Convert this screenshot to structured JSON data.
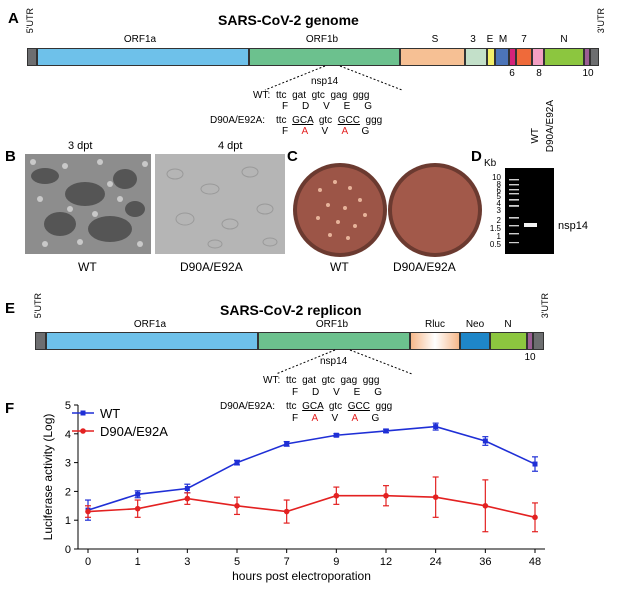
{
  "panelA": {
    "label": "A",
    "title": "SARS-CoV-2 genome",
    "utr5": "5'UTR",
    "utr3": "3'UTR",
    "segments": {
      "orf1a": "ORF1a",
      "orf1b": "ORF1b",
      "s": "S",
      "g3": "3",
      "e": "E",
      "m": "M",
      "g7": "7",
      "n": "N"
    },
    "below": {
      "g6": "6",
      "g8": "8",
      "g10": "10"
    },
    "nsp14": "nsp14",
    "wt_label": "WT:",
    "wt_seq": "ttc  gat  gtc  gag  ggg",
    "wt_aa": "F     D     V     E     G",
    "mut_label": "D90A/E92A:",
    "mut_prefix": "ttc",
    "mut_c1": "GCA",
    "mut_mid": "gtc",
    "mut_c2": "GCC",
    "mut_end": "ggg",
    "mut_aa_f": "F",
    "mut_aa_a1": "A",
    "mut_aa_v": "V",
    "mut_aa_a2": "A",
    "mut_aa_g": "G"
  },
  "panelB": {
    "label": "B",
    "img1_title": "3 dpt",
    "img2_title": "4 dpt",
    "img1_caption": "WT",
    "img2_caption": "D90A/E92A"
  },
  "panelC": {
    "label": "C",
    "plate1_caption": "WT",
    "plate2_caption": "D90A/E92A"
  },
  "panelD": {
    "label": "D",
    "kb": "Kb",
    "lane1": "WT",
    "lane2": "D90A/E92A",
    "markers": [
      "10",
      "8",
      "6",
      "5",
      "4",
      "3",
      "2",
      "1.5",
      "1",
      "0.5"
    ],
    "band_label": "nsp14"
  },
  "panelE": {
    "label": "E",
    "title": "SARS-CoV-2 replicon",
    "utr5": "5'UTR",
    "utr3": "3'UTR",
    "segments": {
      "orf1a": "ORF1a",
      "orf1b": "ORF1b",
      "rluc": "Rluc",
      "neo": "Neo",
      "n": "N"
    },
    "below10": "10",
    "nsp14": "nsp14",
    "wt_label": "WT:",
    "wt_seq": "ttc  gat  gtc  gag  ggg",
    "wt_aa": "F     D     V     E     G",
    "mut_label": "D90A/E92A:",
    "mut_prefix": "ttc",
    "mut_c1": "GCA",
    "mut_mid": "gtc",
    "mut_c2": "GCC",
    "mut_end": "ggg",
    "mut_aa_f": "F",
    "mut_aa_a1": "A",
    "mut_aa_v": "V",
    "mut_aa_a2": "A",
    "mut_aa_g": "G"
  },
  "panelF": {
    "label": "F"
  },
  "colors": {
    "orf1a": "#6ec1ea",
    "orf1b": "#6cc18e",
    "s": "#f6c094",
    "g3": "#c3e0c9",
    "e": "#f3ef6a",
    "m": "#4c74b8",
    "g6": "#d4237a",
    "g7": "#ef6a3a",
    "g8": "#f39fc3",
    "n": "#8cc63f",
    "g10": "#9b5e94",
    "utr": "#6d6e70",
    "wt": "#1f2fd6",
    "mut": "#e32121"
  },
  "chart_data": {
    "type": "line",
    "xlabel": "hours post electroporation",
    "ylabel": "Luciferase activity (Log)",
    "categories": [
      "0",
      "1",
      "3",
      "5",
      "7",
      "9",
      "12",
      "24",
      "36",
      "48"
    ],
    "ylim": [
      0,
      5
    ],
    "yticks": [
      "0",
      "1",
      "2",
      "3",
      "4",
      "5"
    ],
    "series": [
      {
        "name": "WT",
        "values": [
          1.35,
          1.9,
          2.1,
          3.0,
          3.65,
          3.95,
          4.1,
          4.25,
          3.75,
          2.95
        ],
        "errors": [
          0.35,
          0.12,
          0.15,
          0.08,
          0.08,
          0.05,
          0.06,
          0.12,
          0.15,
          0.25
        ]
      },
      {
        "name": "D90A/E92A",
        "values": [
          1.3,
          1.4,
          1.75,
          1.5,
          1.3,
          1.85,
          1.85,
          1.8,
          1.5,
          1.1
        ],
        "errors": [
          0.2,
          0.3,
          0.2,
          0.3,
          0.4,
          0.3,
          0.35,
          0.7,
          0.9,
          0.5
        ]
      }
    ]
  }
}
